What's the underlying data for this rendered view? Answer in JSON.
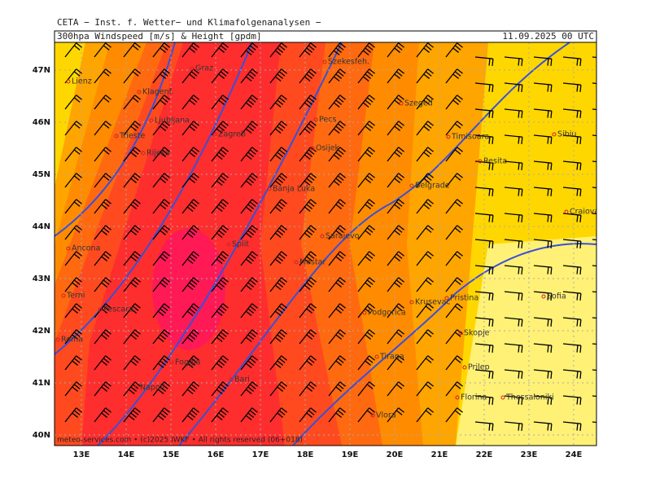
{
  "header": {
    "institute": "CETA − Inst. f. Wetter− und Klimafolgenanalysen −",
    "title": "300hpa Windspeed [m/s] & Height [gpdm]",
    "date": "11.09.2025 00 UTC",
    "footer": "meteo-services.com • (c)2025 IWKF • All rights reserved (06+018)"
  },
  "axes": {
    "lat_labels": [
      "47N",
      "46N",
      "45N",
      "44N",
      "43N",
      "42N",
      "41N",
      "40N"
    ],
    "lon_labels": [
      "13E",
      "14E",
      "15E",
      "16E",
      "17E",
      "18E",
      "19E",
      "20E",
      "21E",
      "22E",
      "23E",
      "24E"
    ]
  },
  "cities": [
    "Lienz",
    "Graz",
    "Szekesfeh.",
    "Klagenf.",
    "Szeged",
    "Ljubljana",
    "Pecs",
    "Trieste",
    "Zagreb",
    "Timisoara",
    "Sibiu",
    "Rijeka",
    "Osijek",
    "Resita",
    "Banja Luka",
    "Belgrade",
    "Craiova",
    "Sarajevo",
    "Ancona",
    "Split",
    "Mostar",
    "Terni",
    "Sofia",
    "Pristina",
    "Pescara",
    "Krusevac",
    "Podgorica",
    "Skopje",
    "Roma",
    "Foggia",
    "Tirana",
    "Prilep",
    "Bari",
    "Napoli",
    "Thessaloniki",
    "Florina",
    "Vlora"
  ]
}
